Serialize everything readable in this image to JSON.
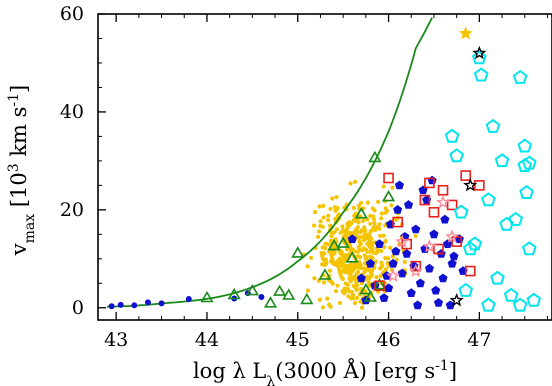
{
  "chart_data": {
    "type": "scatter",
    "xlabel": "log λ L_λ(3000 Å) [erg s^-1]",
    "xlabel_parts": {
      "prefix": "log λ L",
      "sub": "λ",
      "middle": "(3000 Å) [erg s",
      "sup": "-1",
      "suffix": "]"
    },
    "ylabel": "v_max [10^3 km s^-1]",
    "ylabel_parts": {
      "main": "v",
      "sub": "max",
      "middle": " [10",
      "sup1": "3",
      "middle2": " km s",
      "sup2": "-1",
      "suffix": "]"
    },
    "xlim": [
      42.8,
      47.8
    ],
    "ylim": [
      -2.5,
      60
    ],
    "xticks": [
      "43",
      "44",
      "45",
      "46",
      "47"
    ],
    "yticks": [
      "0",
      "20",
      "40",
      "60"
    ],
    "grid": false,
    "legend": "none",
    "colors": {
      "gold_dots": "#f5c400",
      "blue_pentagons": "#1010d0",
      "green_triangles": "#1a8a1a",
      "red_squares": "#e8201c",
      "cyan_pentagons": "#00e5ee",
      "pink_stars": "#ff8a9a",
      "black_stars": "#000000",
      "curve": "#1a8a1a"
    },
    "curve": {
      "type": "exponential",
      "x": [
        42.9,
        43.5,
        44.0,
        44.5,
        45.0,
        45.5,
        46.0,
        46.3,
        46.5
      ],
      "y": [
        0.2,
        0.9,
        1.8,
        4.2,
        9.5,
        19.5,
        36.0,
        53.0,
        60.0
      ]
    },
    "series": [
      {
        "values": [
          [
            42.95,
            0.3
          ],
          [
            43.05,
            0.6
          ],
          [
            43.2,
            0.5
          ],
          [
            43.35,
            1.1
          ],
          [
            43.5,
            0.9
          ],
          [
            43.8,
            1.8
          ],
          [
            44.3,
            1.9
          ],
          [
            44.45,
            3.0
          ],
          [
            44.6,
            2.2
          ]
        ]
      },
      {
        "values": [
          [
            45.6,
            14
          ],
          [
            45.7,
            6
          ],
          [
            45.8,
            9
          ],
          [
            45.9,
            13
          ],
          [
            45.95,
            2
          ],
          [
            46.0,
            4
          ],
          [
            46.05,
            9
          ],
          [
            46.1,
            20
          ],
          [
            46.15,
            7
          ],
          [
            46.2,
            11
          ],
          [
            46.25,
            3
          ],
          [
            46.3,
            16
          ],
          [
            46.35,
            5
          ],
          [
            46.4,
            12
          ],
          [
            46.45,
            8
          ],
          [
            46.5,
            15
          ],
          [
            46.55,
            1
          ],
          [
            46.6,
            6
          ],
          [
            46.65,
            13
          ],
          [
            46.7,
            9
          ],
          [
            45.75,
            1.5
          ],
          [
            45.85,
            4.5
          ],
          [
            46.02,
            17
          ],
          [
            46.12,
            25
          ],
          [
            46.22,
            21
          ],
          [
            46.32,
            0.5
          ],
          [
            46.42,
            22
          ],
          [
            46.52,
            3.5
          ],
          [
            46.62,
            18
          ],
          [
            46.72,
            10.5
          ],
          [
            46.38,
            24
          ],
          [
            46.48,
            26
          ],
          [
            46.28,
            8.5
          ],
          [
            46.18,
            14.5
          ],
          [
            46.08,
            11.5
          ],
          [
            45.98,
            6.5
          ],
          [
            46.58,
            11
          ],
          [
            46.68,
            0.5
          ],
          [
            46.78,
            14
          ],
          [
            46.82,
            7.5
          ]
        ]
      },
      {
        "values": [
          [
            44.0,
            1.9
          ],
          [
            44.3,
            2.5
          ],
          [
            44.5,
            3.3
          ],
          [
            44.7,
            0.8
          ],
          [
            44.8,
            3.2
          ],
          [
            44.9,
            2.4
          ],
          [
            45.0,
            11.0
          ],
          [
            45.1,
            1.5
          ],
          [
            45.3,
            6.5
          ],
          [
            45.4,
            12.5
          ],
          [
            45.5,
            13.0
          ],
          [
            45.6,
            10.0
          ],
          [
            45.7,
            19.0
          ],
          [
            45.75,
            3.5
          ],
          [
            45.8,
            2.0
          ],
          [
            45.85,
            30.5
          ],
          [
            45.9,
            4.5
          ],
          [
            46.0,
            22.5
          ]
        ]
      },
      {
        "values": [
          [
            45.9,
            4.5
          ],
          [
            46.0,
            26.5
          ],
          [
            46.1,
            17.5
          ],
          [
            46.2,
            13
          ],
          [
            46.3,
            8.5
          ],
          [
            46.4,
            22
          ],
          [
            46.45,
            25.5
          ],
          [
            46.5,
            19.5
          ],
          [
            46.55,
            12
          ],
          [
            46.6,
            24
          ],
          [
            46.7,
            21
          ],
          [
            46.75,
            13.5
          ],
          [
            46.85,
            27
          ],
          [
            46.9,
            7.5
          ],
          [
            47.0,
            25
          ]
        ]
      },
      {
        "values": [
          [
            46.7,
            35
          ],
          [
            46.75,
            31
          ],
          [
            46.8,
            19.5
          ],
          [
            46.85,
            3.5
          ],
          [
            46.9,
            12
          ],
          [
            46.95,
            13
          ],
          [
            47.0,
            51
          ],
          [
            47.02,
            47.5
          ],
          [
            47.1,
            22
          ],
          [
            47.15,
            37
          ],
          [
            47.2,
            6
          ],
          [
            47.3,
            17
          ],
          [
            47.35,
            2.5
          ],
          [
            47.4,
            18
          ],
          [
            47.45,
            47
          ],
          [
            47.5,
            33
          ],
          [
            47.5,
            29
          ],
          [
            47.52,
            23.5
          ],
          [
            47.55,
            12
          ],
          [
            47.6,
            1.5
          ],
          [
            47.1,
            0.5
          ],
          [
            47.25,
            30
          ],
          [
            47.45,
            0.5
          ],
          [
            47.55,
            29.5
          ]
        ]
      },
      {
        "values": [
          [
            46.05,
            6.5
          ],
          [
            46.15,
            13.5
          ],
          [
            46.3,
            7.5
          ],
          [
            46.45,
            12.5
          ],
          [
            46.6,
            21.5
          ],
          [
            46.7,
            14.5
          ]
        ]
      },
      {
        "values": [
          [
            46.75,
            1.5
          ],
          [
            46.9,
            25
          ],
          [
            47.0,
            52
          ],
          [
            46.85,
            56
          ]
        ]
      }
    ]
  }
}
